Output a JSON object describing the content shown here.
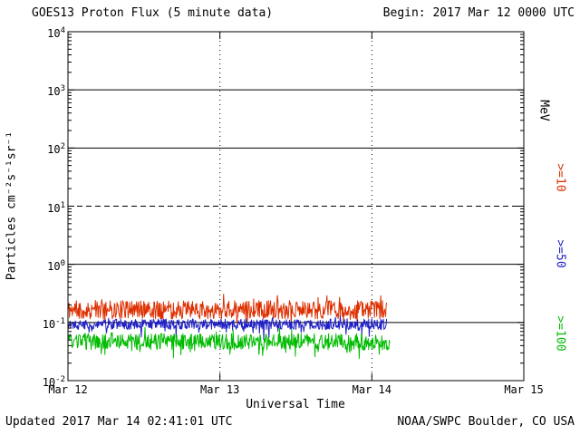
{
  "header": {
    "title": "GOES13 Proton Flux (5 minute data)",
    "begin": "Begin: 2017 Mar 12 0000 UTC"
  },
  "axes": {
    "y_label": "Particles cm⁻²s⁻¹sr⁻¹",
    "x_label": "Universal Time",
    "right_unit_label": "MeV"
  },
  "footer": {
    "updated": "Updated 2017 Mar 14 02:41:01 UTC",
    "source": "NOAA/SWPC Boulder, CO USA"
  },
  "chart_data": {
    "type": "line",
    "title": "GOES13 Proton Flux (5 minute data)",
    "subtitle": "Begin: 2017 Mar 12 0000 UTC",
    "xlabel": "Universal Time",
    "ylabel": "Particles cm⁻²s⁻¹sr⁻¹",
    "y_scale": "log",
    "y_log_range": [
      -2,
      4
    ],
    "y_tick_exponents": [
      4,
      3,
      2,
      1,
      0,
      -1,
      -2
    ],
    "x_range_days": [
      0,
      3
    ],
    "x_ticks": [
      {
        "label": "Mar 12",
        "day": 0
      },
      {
        "label": "Mar 13",
        "day": 1
      },
      {
        "label": "Mar 14",
        "day": 2
      },
      {
        "label": "Mar 15",
        "day": 3
      }
    ],
    "h_gridlines": [
      {
        "exp": 3,
        "style": "solid"
      },
      {
        "exp": 2,
        "style": "solid"
      },
      {
        "exp": 1,
        "style": "dashed"
      },
      {
        "exp": 0,
        "style": "solid"
      },
      {
        "exp": -1,
        "style": "solid"
      }
    ],
    "v_gridline_days": [
      1,
      2
    ],
    "right_axis_unit": "MeV",
    "legend_position": "right",
    "grid": true,
    "series": [
      {
        "name": ">=10",
        "color": "#dd2f00",
        "typical_flux": 0.17,
        "approx_flux_range": [
          0.1,
          0.35
        ],
        "end_day": 2.1,
        "seed": 11,
        "log_base": -0.78,
        "log_noise": 0.16,
        "spike_prob": 0.06,
        "spike_amp": 0.22,
        "dip_prob": 0.05,
        "dip_amp": 0.15
      },
      {
        "name": ">=50",
        "color": "#1f1fc8",
        "typical_flux": 0.095,
        "approx_flux_range": [
          0.06,
          0.13
        ],
        "end_day": 2.1,
        "seed": 22,
        "log_base": -1.03,
        "log_noise": 0.09,
        "spike_prob": 0.04,
        "spike_amp": 0.1,
        "dip_prob": 0.08,
        "dip_amp": 0.2
      },
      {
        "name": ">=100",
        "color": "#00bb00",
        "typical_flux": 0.047,
        "approx_flux_range": [
          0.025,
          0.07
        ],
        "end_day": 2.12,
        "seed": 33,
        "log_base": -1.33,
        "log_noise": 0.14,
        "spike_prob": 0.04,
        "spike_amp": 0.12,
        "dip_prob": 0.08,
        "dip_amp": 0.18
      }
    ]
  }
}
